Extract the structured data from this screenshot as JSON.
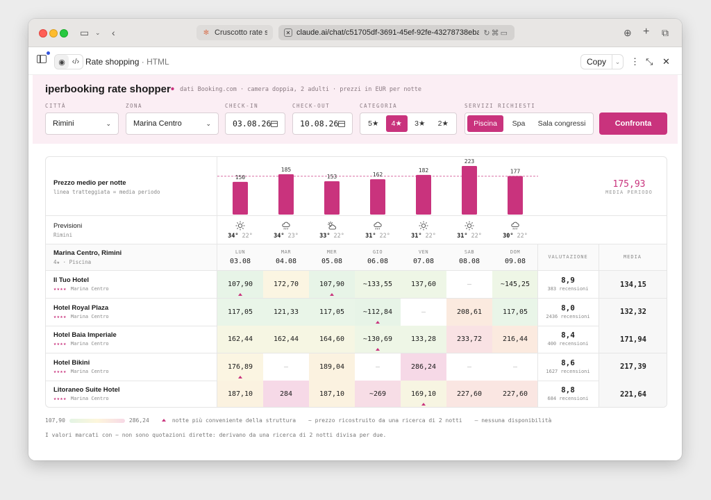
{
  "browser": {
    "tab_inactive_title": "Cruscotto rate s...",
    "tab_active_url": "claude.ai/chat/c51705df-3691-45ef-92fe-43278738eba"
  },
  "artifact": {
    "title": "Rate shopping",
    "type": "· HTML",
    "copy_label": "Copy"
  },
  "app": {
    "brand": "iperbooking rate shopper",
    "brand_dot": "•",
    "subline": "dati Booking.com · camera doppia, 2 adulti · prezzi in EUR per notte"
  },
  "filters": {
    "city": {
      "label": "CITTÀ",
      "value": "Rimini"
    },
    "zone": {
      "label": "ZONA",
      "value": "Marina Centro"
    },
    "checkin": {
      "label": "CHECK-IN",
      "value": "03.08.26"
    },
    "checkout": {
      "label": "CHECK-OUT",
      "value": "10.08.26"
    },
    "category": {
      "label": "CATEGORIA",
      "options": [
        "5★",
        "4★",
        "3★",
        "2★"
      ],
      "selected": 1
    },
    "services": {
      "label": "SERVIZI RICHIESTI",
      "options": [
        "Piscina",
        "Spa",
        "Sala congressi"
      ],
      "selected": 0
    },
    "compare_label": "Confronta"
  },
  "chart_data": {
    "type": "bar",
    "title": "Prezzo medio per notte",
    "subtitle": "linea tratteggiata = media periodo",
    "categories": [
      "03.08",
      "04.08",
      "05.08",
      "06.08",
      "07.08",
      "08.08",
      "09.08"
    ],
    "values": [
      150,
      185,
      153,
      162,
      182,
      223,
      177
    ],
    "average": 175.93,
    "average_label": "175,93",
    "average_caption": "MEDIA PERIODO",
    "ylim": [
      0,
      223
    ],
    "color": "#c9337d"
  },
  "forecast": {
    "title": "Previsioni",
    "city": "Rimini",
    "days": [
      {
        "icon": "sun-icon",
        "max": "34°",
        "min": "22°"
      },
      {
        "icon": "rain-icon",
        "max": "34°",
        "min": "23°"
      },
      {
        "icon": "partly-cloudy-icon",
        "max": "33°",
        "min": "22°"
      },
      {
        "icon": "rain-icon",
        "max": "31°",
        "min": "22°"
      },
      {
        "icon": "sun-icon",
        "max": "31°",
        "min": "22°"
      },
      {
        "icon": "sun-icon",
        "max": "31°",
        "min": "22°"
      },
      {
        "icon": "rain-icon",
        "max": "30°",
        "min": "22°"
      }
    ]
  },
  "table": {
    "group_title": "Marina Centro, Rimini",
    "group_sub": "4★ · Piscina",
    "days": [
      {
        "name": "LUN",
        "date": "03.08"
      },
      {
        "name": "MAR",
        "date": "04.08"
      },
      {
        "name": "MER",
        "date": "05.08"
      },
      {
        "name": "GIO",
        "date": "06.08"
      },
      {
        "name": "VEN",
        "date": "07.08"
      },
      {
        "name": "SAB",
        "date": "08.08"
      },
      {
        "name": "DOM",
        "date": "09.08"
      }
    ],
    "rating_header": "VALUTAZIONE",
    "avg_header": "MEDIA",
    "hotels": [
      {
        "name": "Il Tuo Hotel",
        "stars": "★★★★",
        "zone": "Marina Centro",
        "prices": [
          {
            "text": "107,90",
            "tone": "#e7f4e7",
            "mark": true
          },
          {
            "text": "172,70",
            "tone": "#fbf5e2"
          },
          {
            "text": "107,90",
            "tone": "#e7f4e7",
            "mark": true
          },
          {
            "text": "~133,55",
            "tone": "#eef6e6"
          },
          {
            "text": "137,60",
            "tone": "#eef6e6"
          },
          {
            "text": "—",
            "tone": "#ffffff",
            "na": true
          },
          {
            "text": "~145,25",
            "tone": "#eef6e6"
          }
        ],
        "rating": "8,9",
        "reviews": "383 recensioni",
        "avg": "134,15"
      },
      {
        "name": "Hotel Royal Plaza",
        "stars": "★★★★",
        "zone": "Marina Centro",
        "prices": [
          {
            "text": "117,05",
            "tone": "#e9f5e8"
          },
          {
            "text": "121,33",
            "tone": "#e9f5e8"
          },
          {
            "text": "117,05",
            "tone": "#e9f5e8"
          },
          {
            "text": "~112,84",
            "tone": "#e7f4e7",
            "mark": true
          },
          {
            "text": "—",
            "tone": "#ffffff",
            "na": true
          },
          {
            "text": "208,61",
            "tone": "#fbeadf"
          },
          {
            "text": "117,05",
            "tone": "#e9f5e8"
          }
        ],
        "rating": "8,0",
        "reviews": "2436 recensioni",
        "avg": "132,32"
      },
      {
        "name": "Hotel Baia Imperiale",
        "stars": "★★★★",
        "zone": "Marina Centro",
        "prices": [
          {
            "text": "162,44",
            "tone": "#f6f6e3"
          },
          {
            "text": "162,44",
            "tone": "#f6f6e3"
          },
          {
            "text": "164,60",
            "tone": "#f6f6e3"
          },
          {
            "text": "~130,69",
            "tone": "#eef6e6",
            "mark": true
          },
          {
            "text": "133,28",
            "tone": "#eef6e6"
          },
          {
            "text": "233,72",
            "tone": "#f9e2e4"
          },
          {
            "text": "216,44",
            "tone": "#fbeadf"
          }
        ],
        "rating": "8,4",
        "reviews": "400 recensioni",
        "avg": "171,94"
      },
      {
        "name": "Hotel Bikini",
        "stars": "★★★★",
        "zone": "Marina Centro",
        "prices": [
          {
            "text": "176,89",
            "tone": "#fbf5e2",
            "mark": true
          },
          {
            "text": "—",
            "tone": "#ffffff",
            "na": true
          },
          {
            "text": "189,04",
            "tone": "#fbf2e0"
          },
          {
            "text": "—",
            "tone": "#ffffff",
            "na": true
          },
          {
            "text": "286,24",
            "tone": "#f6d9e7"
          },
          {
            "text": "—",
            "tone": "#ffffff",
            "na": true
          },
          {
            "text": "—",
            "tone": "#ffffff",
            "na": true
          }
        ],
        "rating": "8,6",
        "reviews": "1627 recensioni",
        "avg": "217,39"
      },
      {
        "name": "Litoraneo Suite Hotel",
        "stars": "★★★★",
        "zone": "Marina Centro",
        "prices": [
          {
            "text": "187,10",
            "tone": "#fbf2e0"
          },
          {
            "text": "284",
            "tone": "#f6d9e7"
          },
          {
            "text": "187,10",
            "tone": "#fbf2e0"
          },
          {
            "text": "~269",
            "tone": "#f7dde6"
          },
          {
            "text": "169,10",
            "tone": "#f7f5e2",
            "mark": true
          },
          {
            "text": "227,60",
            "tone": "#fae6e2"
          },
          {
            "text": "227,60",
            "tone": "#fae6e2"
          }
        ],
        "rating": "8,8",
        "reviews": "684 recensioni",
        "avg": "221,64"
      }
    ]
  },
  "legend": {
    "min": "107,90",
    "max": "286,24",
    "best": "notte più conveniente della struttura",
    "approx": "~ prezzo ricostruito da una ricerca di 2 notti",
    "na": "— nessuna disponibilità",
    "note": "I valori marcati con ~ non sono quotazioni dirette: derivano da una ricerca di 2 notti divisa per due."
  }
}
